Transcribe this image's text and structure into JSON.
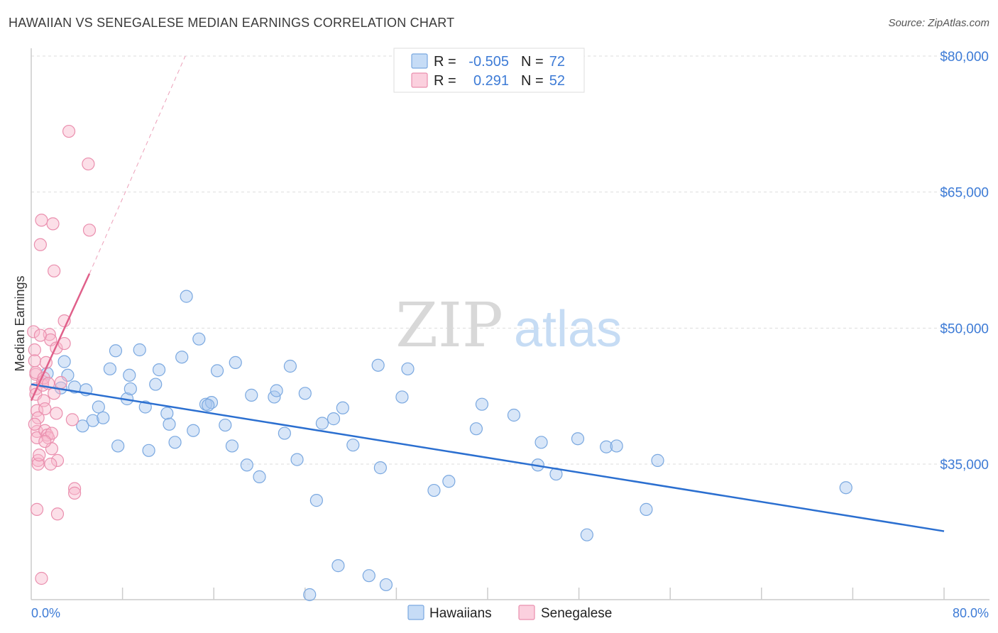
{
  "header": {
    "title": "HAWAIIAN VS SENEGALESE MEDIAN EARNINGS CORRELATION CHART",
    "source": "Source: ZipAtlas.com"
  },
  "watermark": {
    "zip": "ZIP",
    "atlas": "atlas"
  },
  "stats_legend": {
    "rows": [
      {
        "r_label": "R =",
        "r_value": "-0.505",
        "n_label": "N =",
        "n_value": "72",
        "color": "#a8c8f0"
      },
      {
        "r_label": "R =",
        "r_value": "0.291",
        "n_label": "N =",
        "n_value": "52",
        "color": "#f8b8cc"
      }
    ]
  },
  "chart_data": {
    "type": "scatter",
    "title": "HAWAIIAN VS SENEGALESE MEDIAN EARNINGS CORRELATION CHART",
    "xlabel": "",
    "ylabel": "Median Earnings",
    "xlim": [
      0,
      80
    ],
    "ylim": [
      20000,
      82000
    ],
    "x_tick_labels": [
      "0.0%",
      "80.0%"
    ],
    "y_ticks": [
      35000,
      50000,
      65000,
      80000
    ],
    "y_tick_labels": [
      "$35,000",
      "$50,000",
      "$65,000",
      "$80,000"
    ],
    "grid": true,
    "legend_position": "bottom-center",
    "series": [
      {
        "name": "Hawaiians",
        "color": "#a8c8f0",
        "stroke": "#7aa8e0",
        "trend_color": "#2b6fd0",
        "trend": {
          "x": [
            0,
            80
          ],
          "y": [
            43800,
            27600
          ]
        },
        "points": [
          [
            1.4,
            45000
          ],
          [
            2.6,
            43400
          ],
          [
            2.9,
            46300
          ],
          [
            3.2,
            44800
          ],
          [
            3.8,
            43500
          ],
          [
            4.5,
            39200
          ],
          [
            4.8,
            43200
          ],
          [
            5.4,
            39800
          ],
          [
            5.9,
            41300
          ],
          [
            6.3,
            40100
          ],
          [
            6.9,
            45500
          ],
          [
            7.4,
            47500
          ],
          [
            7.6,
            37000
          ],
          [
            8.4,
            42200
          ],
          [
            8.6,
            44800
          ],
          [
            9.5,
            47600
          ],
          [
            10.0,
            41300
          ],
          [
            10.3,
            36500
          ],
          [
            10.9,
            43800
          ],
          [
            11.2,
            45400
          ],
          [
            11.9,
            40600
          ],
          [
            12.1,
            39400
          ],
          [
            12.6,
            37400
          ],
          [
            13.2,
            46800
          ],
          [
            13.6,
            53500
          ],
          [
            14.2,
            38700
          ],
          [
            14.7,
            48800
          ],
          [
            15.3,
            41600
          ],
          [
            15.8,
            41800
          ],
          [
            16.3,
            45300
          ],
          [
            17.0,
            39300
          ],
          [
            17.6,
            37000
          ],
          [
            17.9,
            46200
          ],
          [
            18.9,
            34900
          ],
          [
            19.3,
            42600
          ],
          [
            20.0,
            33600
          ],
          [
            21.3,
            42400
          ],
          [
            21.5,
            43100
          ],
          [
            22.2,
            38400
          ],
          [
            22.7,
            45800
          ],
          [
            23.3,
            35500
          ],
          [
            24.0,
            42800
          ],
          [
            25.0,
            31000
          ],
          [
            25.5,
            39500
          ],
          [
            26.9,
            23800
          ],
          [
            27.3,
            41200
          ],
          [
            28.2,
            37100
          ],
          [
            29.6,
            22700
          ],
          [
            30.4,
            45900
          ],
          [
            30.6,
            34600
          ],
          [
            31.1,
            21700
          ],
          [
            32.5,
            42400
          ],
          [
            33.0,
            45500
          ],
          [
            35.3,
            32100
          ],
          [
            36.6,
            33100
          ],
          [
            39.0,
            38900
          ],
          [
            39.5,
            41600
          ],
          [
            42.3,
            40400
          ],
          [
            44.4,
            34900
          ],
          [
            44.7,
            37400
          ],
          [
            46.0,
            33900
          ],
          [
            47.9,
            37800
          ],
          [
            48.7,
            27200
          ],
          [
            50.4,
            36900
          ],
          [
            51.3,
            37000
          ],
          [
            53.9,
            30000
          ],
          [
            54.9,
            35400
          ],
          [
            71.4,
            32400
          ],
          [
            24.4,
            20600
          ],
          [
            15.5,
            41500
          ],
          [
            26.5,
            40000
          ],
          [
            8.7,
            43300
          ]
        ]
      },
      {
        "name": "Senegalese",
        "color": "#f8b8cc",
        "stroke": "#ea8fae",
        "trend_color": "#e0608a",
        "trend": {
          "x": [
            0,
            5.1
          ],
          "y": [
            42000,
            56000
          ]
        },
        "trend_dashed": {
          "x": [
            5.1,
            13.5
          ],
          "y": [
            56000,
            80000
          ]
        },
        "points": [
          [
            0.2,
            49600
          ],
          [
            0.3,
            47600
          ],
          [
            0.3,
            46400
          ],
          [
            0.4,
            44900
          ],
          [
            0.4,
            43300
          ],
          [
            0.4,
            42700
          ],
          [
            0.5,
            40900
          ],
          [
            0.5,
            38600
          ],
          [
            0.5,
            37900
          ],
          [
            0.6,
            35400
          ],
          [
            0.6,
            35000
          ],
          [
            0.5,
            30000
          ],
          [
            0.9,
            61900
          ],
          [
            0.8,
            59200
          ],
          [
            1.0,
            44100
          ],
          [
            1.0,
            43700
          ],
          [
            1.1,
            42000
          ],
          [
            1.2,
            41100
          ],
          [
            1.2,
            38700
          ],
          [
            1.4,
            38200
          ],
          [
            1.5,
            37900
          ],
          [
            1.6,
            49300
          ],
          [
            1.7,
            48700
          ],
          [
            1.8,
            38400
          ],
          [
            1.8,
            36700
          ],
          [
            1.9,
            61500
          ],
          [
            2.0,
            56300
          ],
          [
            2.2,
            47800
          ],
          [
            2.2,
            40600
          ],
          [
            2.3,
            35400
          ],
          [
            2.3,
            29500
          ],
          [
            2.9,
            50800
          ],
          [
            2.9,
            48300
          ],
          [
            3.3,
            71700
          ],
          [
            3.8,
            32300
          ],
          [
            3.8,
            31800
          ],
          [
            3.6,
            39900
          ],
          [
            5.0,
            68100
          ],
          [
            5.1,
            60800
          ],
          [
            0.9,
            22400
          ],
          [
            0.4,
            45100
          ],
          [
            0.6,
            40100
          ],
          [
            0.7,
            36000
          ],
          [
            1.1,
            44500
          ],
          [
            1.3,
            46200
          ],
          [
            1.5,
            43900
          ],
          [
            2.0,
            42800
          ],
          [
            0.8,
            49200
          ],
          [
            1.2,
            37500
          ],
          [
            0.3,
            39400
          ],
          [
            2.6,
            44000
          ],
          [
            1.7,
            35000
          ]
        ]
      }
    ]
  },
  "bottom_legend": {
    "items": [
      {
        "label": "Hawaiians",
        "color": "#a8c8f0"
      },
      {
        "label": "Senegalese",
        "color": "#f8b8cc"
      }
    ]
  }
}
